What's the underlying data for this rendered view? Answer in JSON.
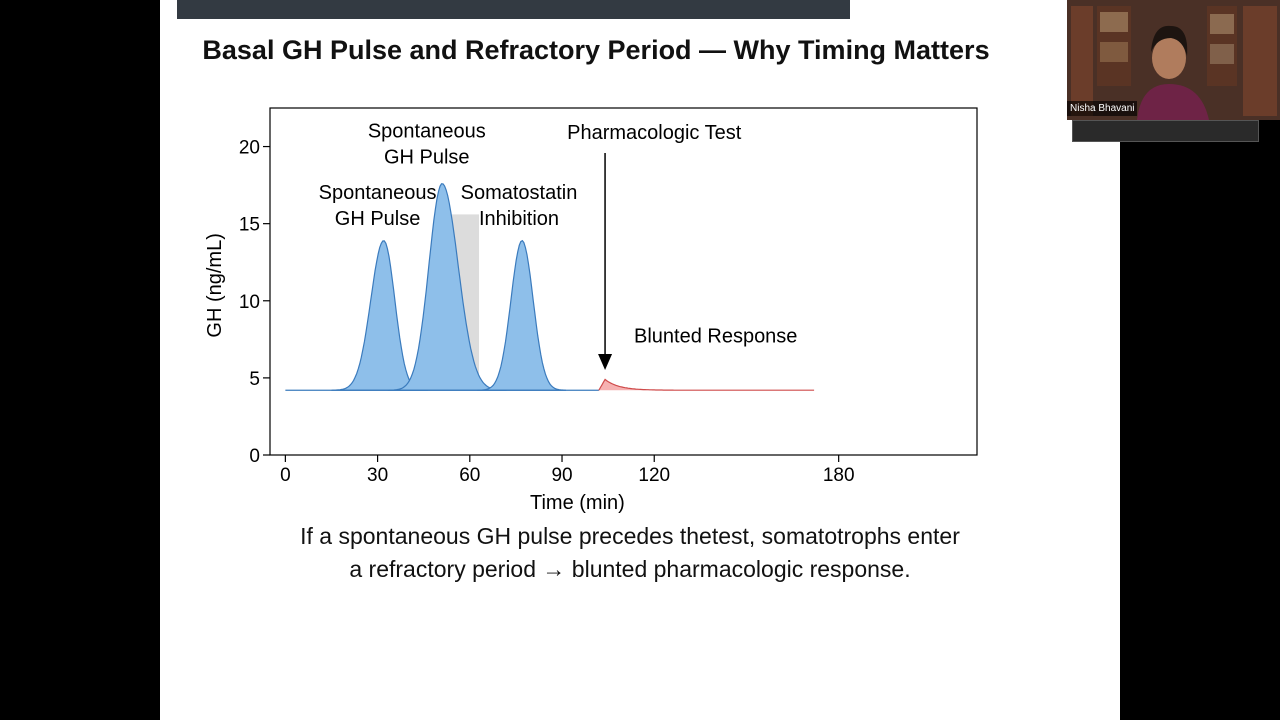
{
  "slide": {
    "title": "Basal GH Pulse and Refractory Period — Why Timing Matters",
    "caption_line1": "If a spontaneous GH pulse precedes thetest, somatotrophs enter",
    "caption_line2": "a refractory period → blunted pharmacologic response."
  },
  "video": {
    "participant_name": "Nisha Bhavani"
  },
  "colors": {
    "pulse_fill": "#8ebfea",
    "pulse_stroke": "#3b7bbd",
    "response_fill": "#f6b1b1",
    "response_stroke": "#cf4b4b",
    "shade": "#dcdcdc"
  },
  "chart_data": {
    "type": "area",
    "title": "",
    "xlabel": "Time (min)",
    "ylabel": "GH (ng/mL)",
    "xlim": [
      -5,
      225
    ],
    "ylim": [
      0,
      22.5
    ],
    "xticks": [
      0,
      30,
      60,
      90,
      120,
      180
    ],
    "yticks": [
      0,
      5,
      10,
      15,
      20
    ],
    "baseline": 4.2,
    "pulses": [
      {
        "name": "pulse-1",
        "center": 32,
        "peak": 13.9,
        "sigma_left": 4.2,
        "sigma_right": 3.6
      },
      {
        "name": "pulse-2",
        "center": 51,
        "peak": 17.6,
        "sigma_left": 4.3,
        "sigma_right": 5.2
      },
      {
        "name": "pulse-3",
        "center": 77,
        "peak": 13.9,
        "sigma_left": 3.6,
        "sigma_right": 3.6
      }
    ],
    "blunted_response": {
      "start": 102,
      "end": 172,
      "peak": 4.9,
      "peak_time": 104
    },
    "inhibition_band": {
      "x_start": 54,
      "x_end": 63,
      "y_top": 15.6
    },
    "test_time": 104,
    "annotations": [
      {
        "id": "spontaneous-pulse-1",
        "lines": [
          "Spontaneous",
          "GH Pulse"
        ],
        "x": 30,
        "y": 16.6
      },
      {
        "id": "spontaneous-pulse-2",
        "lines": [
          "Spontaneous",
          "GH Pulse"
        ],
        "x": 46,
        "y": 20.6
      },
      {
        "id": "somatostatin",
        "lines": [
          "Somatostatin",
          "Inhibition"
        ],
        "x": 76,
        "y": 16.6
      },
      {
        "id": "pharmacologic-test",
        "lines": [
          "Pharmacologic Test"
        ],
        "x": 120,
        "y": 20.5
      },
      {
        "id": "blunted-response",
        "lines": [
          "Blunted Response"
        ],
        "x": 140,
        "y": 7.3
      }
    ]
  }
}
